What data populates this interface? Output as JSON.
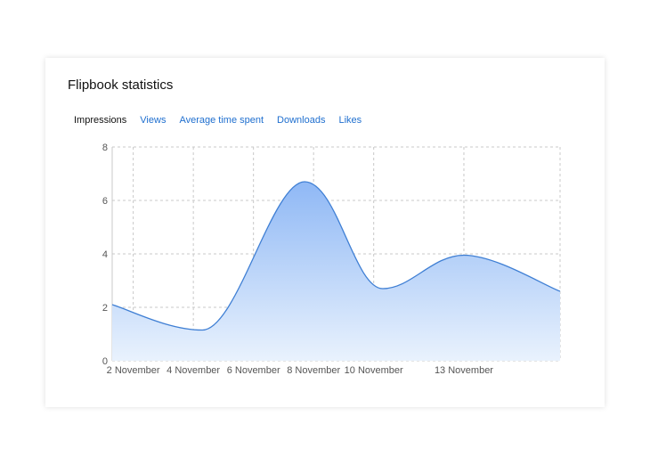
{
  "card": {
    "title": "Flipbook statistics"
  },
  "tabs": [
    {
      "label": "Impressions",
      "active": true
    },
    {
      "label": "Views",
      "active": false
    },
    {
      "label": "Average time spent",
      "active": false
    },
    {
      "label": "Downloads",
      "active": false
    },
    {
      "label": "Likes",
      "active": false
    }
  ],
  "colors": {
    "line": "#3f7fd4",
    "fill_top": "#8fb8f5",
    "fill_bottom": "#e9f2fd",
    "grid": "#c8c8c8",
    "tab_link": "#1f6fcf"
  },
  "chart_data": {
    "type": "area",
    "x_range": [
      1.3,
      16.2
    ],
    "ylim": [
      0,
      8
    ],
    "y_ticks": [
      0,
      2,
      4,
      6,
      8
    ],
    "x_ticks": [
      {
        "value": 2,
        "label": "2 November"
      },
      {
        "value": 4,
        "label": "4 November"
      },
      {
        "value": 6,
        "label": "6 November"
      },
      {
        "value": 8,
        "label": "8 November"
      },
      {
        "value": 10,
        "label": "10 November"
      },
      {
        "value": 13,
        "label": "13 November"
      }
    ],
    "points": [
      {
        "x": 1.3,
        "y": 2.1
      },
      {
        "x": 4.3,
        "y": 1.15
      },
      {
        "x": 7.7,
        "y": 6.7
      },
      {
        "x": 10.3,
        "y": 2.7
      },
      {
        "x": 13.0,
        "y": 3.95
      },
      {
        "x": 16.2,
        "y": 2.6
      }
    ],
    "grid": true,
    "xlabel": "",
    "ylabel": "",
    "title": ""
  }
}
